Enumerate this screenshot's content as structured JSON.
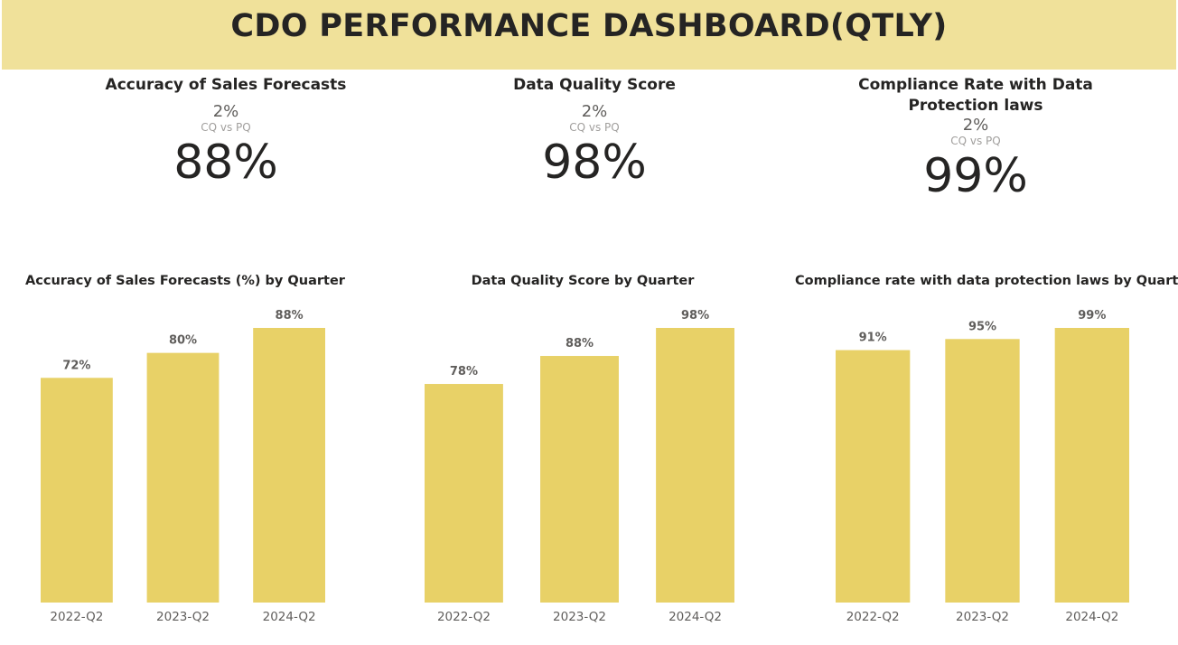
{
  "header": {
    "title": "CDO PERFORMANCE DASHBOARD(QTLY)"
  },
  "colors": {
    "header_bg": "#f0e19a",
    "bar": "#e8d167"
  },
  "kpis": [
    {
      "title": "Accuracy of Sales Forecasts",
      "delta": "2%",
      "delta_label": "CQ vs PQ",
      "value": "88%"
    },
    {
      "title": "Data Quality Score",
      "delta": "2%",
      "delta_label": "CQ vs PQ",
      "value": "98%"
    },
    {
      "title": "Compliance Rate with Data Protection laws",
      "delta": "2%",
      "delta_label": "CQ vs PQ",
      "value": "99%"
    }
  ],
  "chart_data": [
    {
      "type": "bar",
      "title": "Accuracy of Sales Forecasts (%) by Quarter",
      "categories": [
        "2022-Q2",
        "2023-Q2",
        "2024-Q2"
      ],
      "values": [
        72,
        80,
        88
      ],
      "labels": [
        "72%",
        "80%",
        "88%"
      ],
      "ylim": [
        0,
        88
      ],
      "grid": false
    },
    {
      "type": "bar",
      "title": "Data Quality Score by Quarter",
      "categories": [
        "2022-Q2",
        "2023-Q2",
        "2024-Q2"
      ],
      "values": [
        78,
        88,
        98
      ],
      "labels": [
        "78%",
        "88%",
        "98%"
      ],
      "ylim": [
        0,
        98
      ],
      "grid": false
    },
    {
      "type": "bar",
      "title": "Compliance rate with data protection laws by Quarter",
      "categories": [
        "2022-Q2",
        "2023-Q2",
        "2024-Q2"
      ],
      "values": [
        91,
        95,
        99
      ],
      "labels": [
        "91%",
        "95%",
        "99%"
      ],
      "ylim": [
        0,
        99
      ],
      "grid": false
    }
  ]
}
